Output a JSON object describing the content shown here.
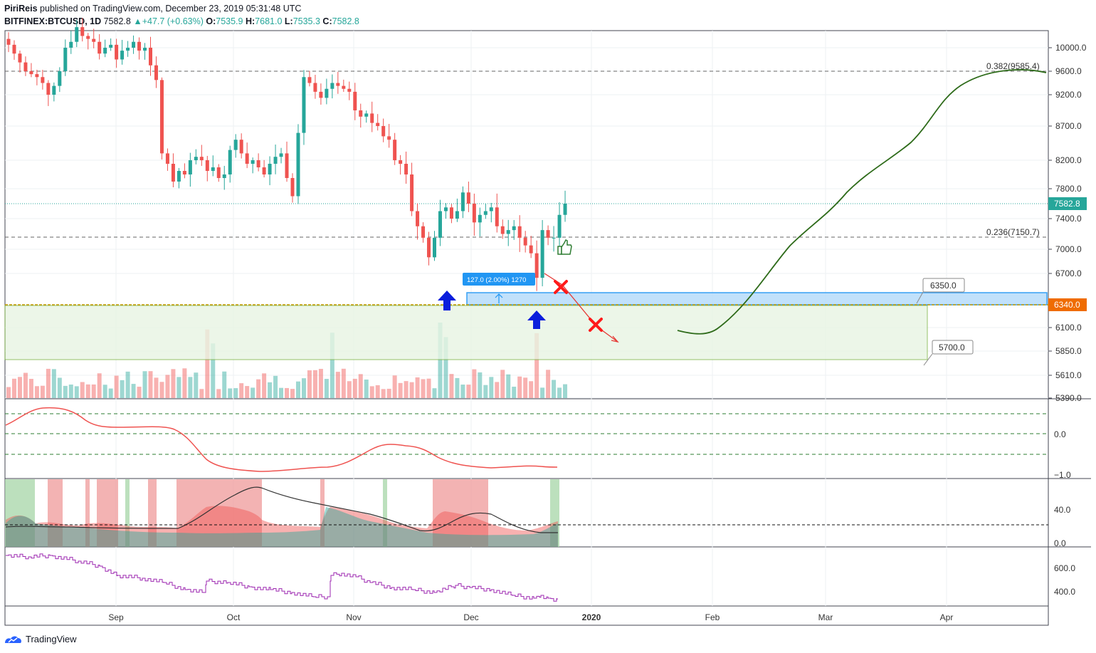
{
  "header": {
    "line1": {
      "author": "PiriReis",
      "published": "published on TradingView.com, December 23, 2019 05:31:48 UTC"
    },
    "line2": {
      "symbol": "BITFINEX:BTCUSD, 1D",
      "last": "7582.8",
      "arrow": "▲",
      "change": "+47.7 (+0.63%)",
      "o_label": "O:",
      "o": "7535.9",
      "h_label": "H:",
      "h": "7681.0",
      "l_label": "L:",
      "l": "7535.3",
      "c_label": "C:",
      "c": "7582.8"
    }
  },
  "footer": {
    "brand": "TradingView"
  },
  "colors": {
    "up": "#26a69a",
    "down": "#ef5350",
    "green_line": "#2e6b1a",
    "blue": "#2196f3",
    "zone_green": "#e8f5e3"
  },
  "chart_data": [
    {
      "type": "candlestick",
      "panel": "price",
      "time_labels": [
        "Sep",
        "Oct",
        "Nov",
        "Dec",
        "2020",
        "Feb",
        "Mar",
        "Apr"
      ],
      "price_axis": {
        "ticks": [
          "10000.0",
          "9600.0",
          "9200.0",
          "8700.0",
          "8200.0",
          "7800.0",
          "7400.0",
          "7000.0",
          "6700.0",
          "6100.0",
          "5850.0",
          "5610.0",
          "5390.0"
        ]
      },
      "last_price": "7582.8",
      "levels": [
        {
          "label": "0.382(9585.4)",
          "value": 9585.4
        },
        {
          "label": "0.236(7150.7)",
          "value": 7150.7
        }
      ],
      "zones": {
        "upper_label": "6350.0",
        "support_label": "6340.0",
        "lower_label": "5700.0"
      },
      "measure_label": "127.0 (2.00%) 1270",
      "close_series": [
        10050,
        9900,
        9750,
        9600,
        9550,
        9500,
        9400,
        9200,
        9350,
        9600,
        10000,
        10100,
        10350,
        10200,
        10150,
        10100,
        9900,
        10000,
        10050,
        9800,
        9950,
        10000,
        10100,
        9950,
        10000,
        9700,
        9450,
        8300,
        8150,
        7900,
        8050,
        8000,
        8200,
        8250,
        8200,
        8050,
        8100,
        7950,
        8000,
        8350,
        8500,
        8300,
        8150,
        8200,
        8100,
        8000,
        8150,
        8250,
        8300,
        7950,
        7700,
        8600,
        9500,
        9400,
        9250,
        9150,
        9300,
        9400,
        9350,
        9300,
        9250,
        8950,
        8850,
        8900,
        8750,
        8700,
        8550,
        8500,
        8200,
        8150,
        8000,
        7500,
        7300,
        7150,
        6900,
        7150,
        7500,
        7550,
        7400,
        7500,
        7750,
        7600,
        7350,
        7450,
        7500,
        7550,
        7300,
        7200,
        7250,
        7300,
        7150,
        7050,
        6950,
        6650,
        7250,
        7150,
        7150,
        7450,
        7600
      ],
      "projection_label": ""
    },
    {
      "type": "line",
      "panel": "oscillator",
      "axis_ticks": [
        "0.0",
        "−1.0"
      ]
    },
    {
      "type": "area",
      "panel": "directional",
      "axis_ticks": [
        "40.0",
        "0.0"
      ]
    },
    {
      "type": "line",
      "panel": "volume-osc",
      "axis_ticks": [
        "600.0",
        "400.0"
      ]
    }
  ]
}
